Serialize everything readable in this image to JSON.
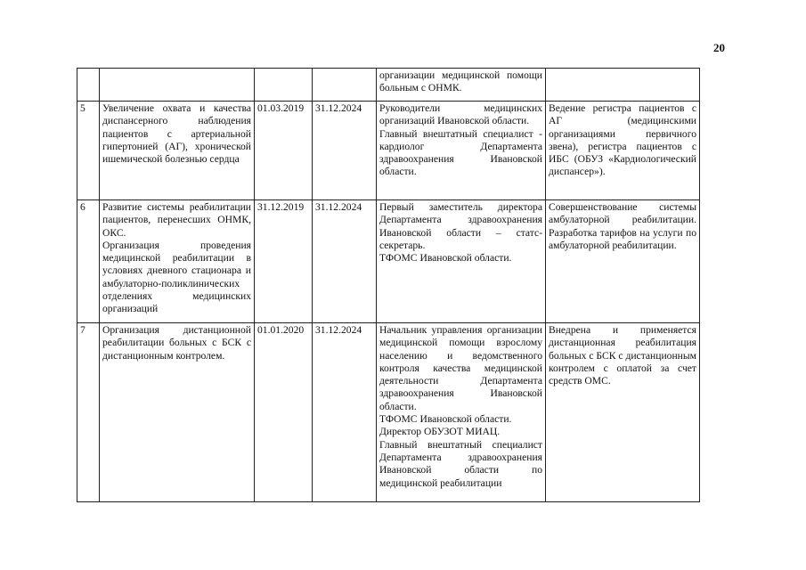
{
  "page_number": "20",
  "rows": [
    {
      "num": "",
      "activity": "",
      "start": "",
      "end": "",
      "responsible": "организации медицинской помощи больным с ОНМК.",
      "result": ""
    },
    {
      "num": "5",
      "activity": "Увеличение охвата и качества диспансерного наблюдения пациентов с артериальной гипертонией (АГ), хронической ишемической болезнью сердца",
      "start": "01.03.2019",
      "end": "31.12.2024",
      "responsible": "Руководители медицинских организаций Ивановской области.\nГлавный внештатный специалист - кардиолог Департамента здравоохранения Ивановской области.",
      "result": "Ведение регистра пациентов с АГ (медицинскими организациями первичного звена), регистра пациентов с ИБС (ОБУЗ «Кардиологический диспансер»)."
    },
    {
      "num": "6",
      "activity": "Развитие системы реабилитации пациентов, перенесших ОНМК, ОКС.\nОрганизация проведения медицинской реабилитации в условиях дневного стационара и амбулаторно-поликлинических отделениях медицинских организаций",
      "start": "31.12.2019",
      "end": "31.12.2024",
      "responsible": "Первый заместитель директора Департамента здравоохранения Ивановской области – статс-секретарь.\nТФОМС Ивановской области.",
      "result": "Совершенствование системы амбулаторной реабилитации. Разработка тарифов на услуги по амбулаторной реабилитации."
    },
    {
      "num": "7",
      "activity": "Организация дистанционной реабилитации больных с БСК с дистанционным контролем.",
      "start": "01.01.2020",
      "end": "31.12.2024",
      "responsible": "Начальник управления организации медицинской помощи взрослому населению и ведомственного контроля качества медицинской деятельности Департамента здравоохранения Ивановской области.\nТФОМС Ивановской области.\nДиректор ОБУЗОТ МИАЦ.\nГлавный внештатный специалист Департамента здравоохранения Ивановской области по медицинской реабилитации",
      "result": "Внедрена и применяется дистанционная реабилитация больных с БСК с дистанционным контролем с оплатой за счет средств ОМС."
    }
  ]
}
